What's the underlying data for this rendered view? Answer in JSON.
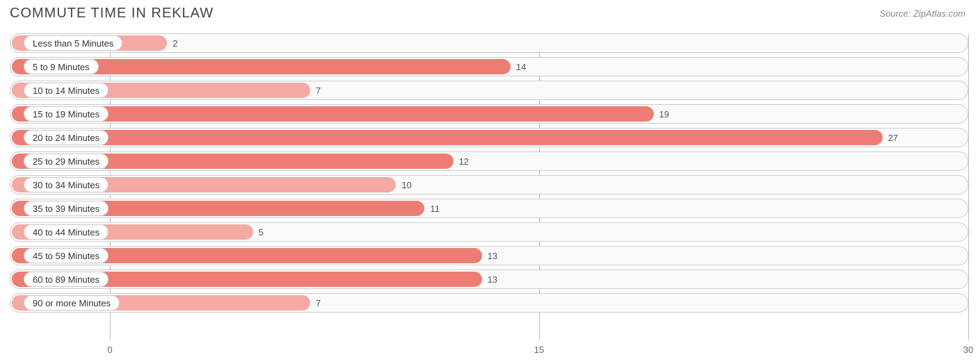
{
  "title": "COMMUTE TIME IN REKLAW",
  "source": "Source: ZipAtlas.com",
  "chart": {
    "type": "bar-horizontal",
    "x_min": -3.5,
    "x_max": 30,
    "x_ticks": [
      0,
      15,
      30
    ],
    "track_border_color": "#cccccc",
    "track_bg": "#fafafa",
    "grid_color": "#bbbbbb",
    "bar_color_strong": "#ed7d74",
    "bar_color_light": "#f4a9a3",
    "label_fontsize": 13,
    "title_fontsize": 20,
    "title_color": "#444444",
    "value_color": "#555555",
    "rows": [
      {
        "label": "Less than 5 Minutes",
        "value": 2,
        "tone": "light"
      },
      {
        "label": "5 to 9 Minutes",
        "value": 14,
        "tone": "strong"
      },
      {
        "label": "10 to 14 Minutes",
        "value": 7,
        "tone": "light"
      },
      {
        "label": "15 to 19 Minutes",
        "value": 19,
        "tone": "strong"
      },
      {
        "label": "20 to 24 Minutes",
        "value": 27,
        "tone": "strong"
      },
      {
        "label": "25 to 29 Minutes",
        "value": 12,
        "tone": "strong"
      },
      {
        "label": "30 to 34 Minutes",
        "value": 10,
        "tone": "light"
      },
      {
        "label": "35 to 39 Minutes",
        "value": 11,
        "tone": "strong"
      },
      {
        "label": "40 to 44 Minutes",
        "value": 5,
        "tone": "light"
      },
      {
        "label": "45 to 59 Minutes",
        "value": 13,
        "tone": "strong"
      },
      {
        "label": "60 to 89 Minutes",
        "value": 13,
        "tone": "strong"
      },
      {
        "label": "90 or more Minutes",
        "value": 7,
        "tone": "light"
      }
    ]
  }
}
